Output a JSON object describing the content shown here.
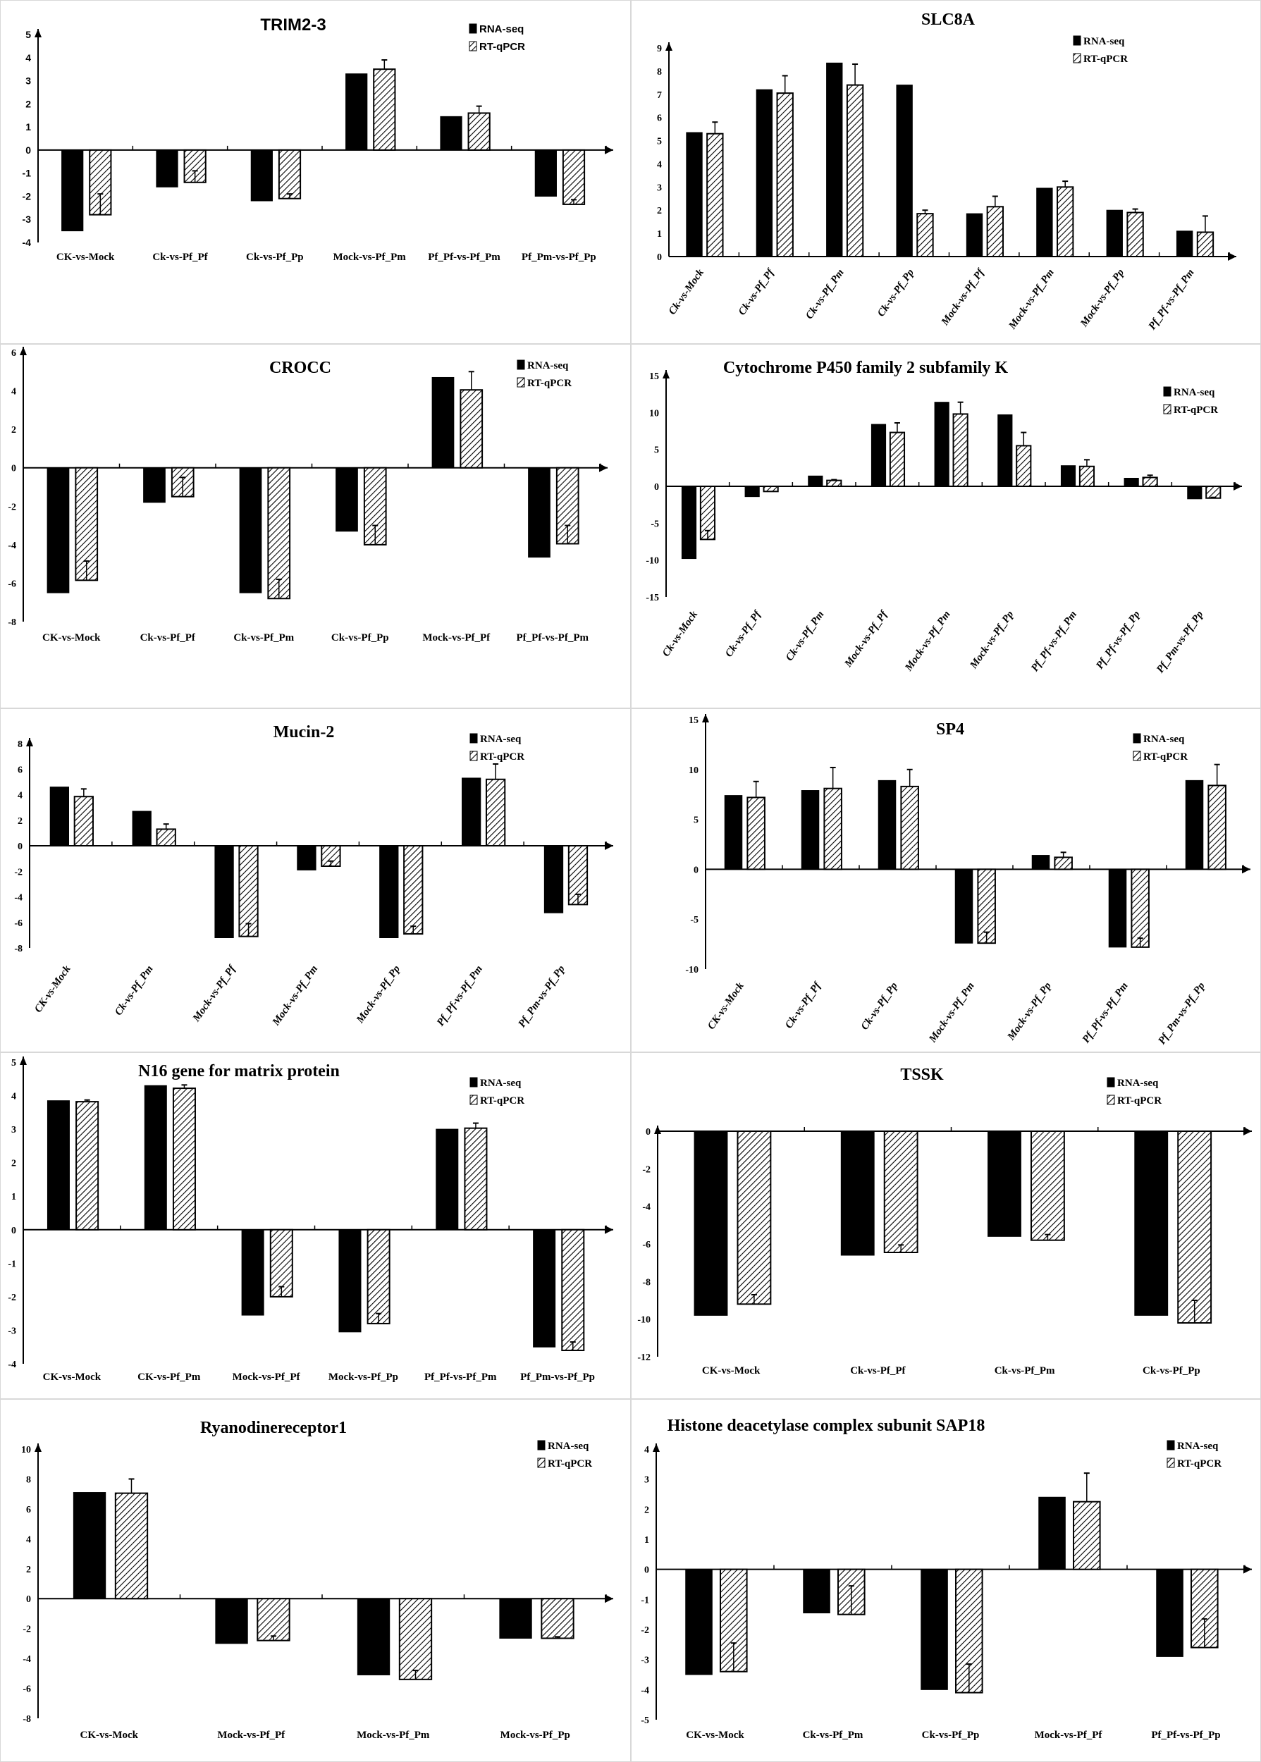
{
  "chart_data": [
    {
      "type": "bar",
      "title": "TRIM2-3",
      "categories": [
        "CK-vs-Mock",
        "Ck-vs-Pf_Pf",
        "Ck-vs-Pf_Pp",
        "Mock-vs-Pf_Pm",
        "Pf_Pf-vs-Pf_Pm",
        "Pf_Pm-vs-Pf_Pp"
      ],
      "series": [
        {
          "name": "RNA-seq",
          "values": [
            -3.5,
            -1.6,
            -2.2,
            3.3,
            1.45,
            -2.0
          ]
        },
        {
          "name": "RT-qPCR",
          "values": [
            -2.8,
            -1.4,
            -2.1,
            3.5,
            1.6,
            -2.35
          ],
          "errors": [
            0.9,
            0.5,
            0.2,
            0.4,
            0.3,
            0.2
          ]
        }
      ],
      "ylim": [
        -4,
        5
      ],
      "yticks": [
        "5",
        "4",
        "3",
        "2",
        "1",
        "0",
        "-1",
        "-2",
        "-3",
        "-4"
      ],
      "legend": "top-right",
      "xlabel": "",
      "ylabel": ""
    },
    {
      "type": "bar",
      "title": "SLC8A",
      "categories": [
        "Ck-vs-Mock",
        "Ck-vs-Pf_Pf",
        "Ck-vs-Pf_Pm",
        "Ck-vs-Pf_Pp",
        "Mock-vs-Pf_Pf",
        "Mock-vs-Pf_Pm",
        "Mock-vs-Pf_Pp",
        "Pf_Pf-vs-Pf_Pm"
      ],
      "series": [
        {
          "name": "RNA-seq",
          "values": [
            5.35,
            7.2,
            8.35,
            7.4,
            1.85,
            2.95,
            2.0,
            1.1
          ]
        },
        {
          "name": "RT-qPCR",
          "values": [
            5.3,
            7.05,
            7.4,
            1.85,
            2.15,
            3.0,
            1.9,
            1.05
          ],
          "errors": [
            0.5,
            0.75,
            0.9,
            0.15,
            0.45,
            0.25,
            0.15,
            0.7
          ]
        }
      ],
      "ylim": [
        0,
        9
      ],
      "yticks": [
        "9",
        "8",
        "7",
        "6",
        "5",
        "4",
        "3",
        "2",
        "1",
        "0"
      ],
      "legend": "top-right",
      "xlabel": "",
      "ylabel": ""
    },
    {
      "type": "bar",
      "title": "CROCC",
      "categories": [
        "CK-vs-Mock",
        "Ck-vs-Pf_Pf",
        "Ck-vs-Pf_Pm",
        "Ck-vs-Pf_Pp",
        "Mock-vs-Pf_Pf",
        "Pf_Pf-vs-Pf_Pm"
      ],
      "series": [
        {
          "name": "RNA-seq",
          "values": [
            -6.5,
            -1.8,
            -6.5,
            -3.3,
            4.7,
            -4.65
          ]
        },
        {
          "name": "RT-qPCR",
          "values": [
            -5.85,
            -1.5,
            -6.8,
            -4.0,
            4.05,
            -3.95
          ],
          "errors": [
            1.0,
            1.0,
            1.0,
            1.0,
            0.95,
            0.95
          ]
        }
      ],
      "ylim": [
        -8,
        6
      ],
      "yticks": [
        "6",
        "4",
        "2",
        "0",
        "-2",
        "-4",
        "-6",
        "-8"
      ],
      "legend": "top-right",
      "xlabel": "",
      "ylabel": ""
    },
    {
      "type": "bar",
      "title": "Cytochrome P450 family 2 subfamily K",
      "categories": [
        "Ck-vs-Mock",
        "Ck-vs-Pf_Pf",
        "Ck-vs-Pf_Pm",
        "Mock-vs-Pf_Pf",
        "Mock-vs-Pf_Pm",
        "Mock-vs-Pf_Pp",
        "Pf_Pf-vs-Pf_Pm",
        "Pf_Pf-vs-Pf_Pp",
        "Pf_Pm-vs-Pf_Pp"
      ],
      "series": [
        {
          "name": "RNA-seq",
          "values": [
            -9.8,
            -1.4,
            1.4,
            8.4,
            11.4,
            9.7,
            2.8,
            1.1,
            -1.7
          ]
        },
        {
          "name": "RT-qPCR",
          "values": [
            -7.2,
            -0.7,
            0.8,
            7.3,
            9.8,
            5.5,
            2.7,
            1.2,
            -1.6
          ],
          "errors": [
            1.2,
            0.0,
            0.1,
            1.3,
            1.6,
            1.8,
            0.9,
            0.3,
            0.1
          ]
        }
      ],
      "ylim": [
        -15,
        15
      ],
      "yticks": [
        "15",
        "10",
        "5",
        "0",
        "-5",
        "-10",
        "-15"
      ],
      "legend": "top-right",
      "xlabel": "",
      "ylabel": ""
    },
    {
      "type": "bar",
      "title": "Mucin-2",
      "categories": [
        "CK-vs-Mock",
        "Ck-vs-Pf_Pm",
        "Mock-vs-Pf_Pf",
        "Mock-vs-Pf_Pm",
        "Mock-vs-Pf_Pp",
        "Pf_Pf-vs-Pf_Pm",
        "Pf_Pm-vs-Pf_Pp"
      ],
      "series": [
        {
          "name": "RNA-seq",
          "values": [
            4.6,
            2.7,
            -7.2,
            -1.9,
            -7.2,
            5.3,
            -5.25
          ]
        },
        {
          "name": "RT-qPCR",
          "values": [
            3.85,
            1.3,
            -7.1,
            -1.6,
            -6.9,
            5.2,
            -4.6
          ],
          "errors": [
            0.6,
            0.4,
            1.0,
            0.4,
            0.6,
            1.2,
            0.8
          ]
        }
      ],
      "ylim": [
        -8,
        8
      ],
      "yticks": [
        "8",
        "6",
        "4",
        "2",
        "0",
        "-2",
        "-4",
        "-6",
        "-8"
      ],
      "legend": "top-right",
      "xlabel": "",
      "ylabel": ""
    },
    {
      "type": "bar",
      "title": "SP4",
      "categories": [
        "CK-vs-Mock",
        "Ck-vs-Pf_Pf",
        "Ck-vs-Pf_Pp",
        "Mock-vs-Pf_Pm",
        "Mock-vs-Pf_Pp",
        "Pf_Pf-vs-Pf_Pm",
        "Pf_Pm-vs-Pf_Pp"
      ],
      "series": [
        {
          "name": "RNA-seq",
          "values": [
            7.4,
            7.9,
            8.9,
            -7.4,
            1.4,
            -7.8,
            8.9
          ]
        },
        {
          "name": "RT-qPCR",
          "values": [
            7.2,
            8.1,
            8.3,
            -7.4,
            1.2,
            -7.8,
            8.4
          ],
          "errors": [
            1.6,
            2.1,
            1.7,
            1.1,
            0.5,
            0.9,
            2.1
          ]
        }
      ],
      "ylim": [
        -10,
        15
      ],
      "yticks": [
        "15",
        "10",
        "5",
        "0",
        "-5",
        "-10"
      ],
      "legend": "top-right",
      "xlabel": "",
      "ylabel": ""
    },
    {
      "type": "bar",
      "title": "N16 gene for matrix protein",
      "categories": [
        "CK-vs-Mock",
        "CK-vs-Pf_Pm",
        "Mock-vs-Pf_Pf",
        "Mock-vs-Pf_Pp",
        "Pf_Pf-vs-Pf_Pm",
        "Pf_Pm-vs-Pf_Pp"
      ],
      "series": [
        {
          "name": "RNA-seq",
          "values": [
            3.85,
            4.3,
            -2.55,
            -3.05,
            3.0,
            -3.5
          ]
        },
        {
          "name": "RT-qPCR",
          "values": [
            3.82,
            4.22,
            -2.0,
            -2.8,
            3.03,
            -3.6
          ],
          "errors": [
            0.05,
            0.1,
            0.3,
            0.3,
            0.15,
            0.25
          ]
        }
      ],
      "ylim": [
        -4,
        5
      ],
      "yticks": [
        "5",
        "4",
        "3",
        "2",
        "1",
        "0",
        "-1",
        "-2",
        "-3",
        "-4"
      ],
      "legend": "top-right",
      "xlabel": "",
      "ylabel": ""
    },
    {
      "type": "bar",
      "title": "TSSK",
      "categories": [
        "CK-vs-Mock",
        "Ck-vs-Pf_Pf",
        "Ck-vs-Pf_Pm",
        "Ck-vs-Pf_Pp"
      ],
      "series": [
        {
          "name": "RNA-seq",
          "values": [
            -9.8,
            -6.6,
            -5.6,
            -9.8
          ]
        },
        {
          "name": "RT-qPCR",
          "values": [
            -9.2,
            -6.45,
            -5.8,
            -10.2
          ],
          "errors": [
            0.5,
            0.4,
            0.3,
            1.2
          ]
        }
      ],
      "ylim": [
        -12,
        0
      ],
      "yticks": [
        "0",
        "-2",
        "-4",
        "-6",
        "-8",
        "-10",
        "-12"
      ],
      "legend": "top-right",
      "xlabel": "",
      "ylabel": ""
    },
    {
      "type": "bar",
      "title": "Ryanodinereceptor1",
      "categories": [
        "CK-vs-Mock",
        "Mock-vs-Pf_Pf",
        "Mock-vs-Pf_Pm",
        "Mock-vs-Pf_Pp"
      ],
      "series": [
        {
          "name": "RNA-seq",
          "values": [
            7.1,
            -3.0,
            -5.1,
            -2.65
          ]
        },
        {
          "name": "RT-qPCR",
          "values": [
            7.05,
            -2.8,
            -5.4,
            -2.65
          ],
          "errors": [
            0.95,
            0.3,
            0.6,
            0.1
          ]
        }
      ],
      "ylim": [
        -8,
        10
      ],
      "yticks": [
        "10",
        "8",
        "6",
        "4",
        "2",
        "0",
        "-2",
        "-4",
        "-6",
        "-8"
      ],
      "legend": "top-right",
      "xlabel": "",
      "ylabel": ""
    },
    {
      "type": "bar",
      "title": "Histone deacetylase complex subunit SAP18",
      "categories": [
        "CK-vs-Mock",
        "Ck-vs-Pf_Pm",
        "Ck-vs-Pf_Pp",
        "Mock-vs-Pf_Pf",
        "Pf_Pf-vs-Pf_Pp"
      ],
      "series": [
        {
          "name": "RNA-seq",
          "values": [
            -3.5,
            -1.45,
            -4.0,
            2.4,
            -2.9
          ]
        },
        {
          "name": "RT-qPCR",
          "values": [
            -3.4,
            -1.5,
            -4.1,
            2.25,
            -2.6
          ],
          "errors": [
            0.95,
            0.95,
            0.95,
            0.95,
            0.95
          ]
        }
      ],
      "ylim": [
        -5,
        4
      ],
      "yticks": [
        "4",
        "3",
        "2",
        "1",
        "0",
        "-1",
        "-2",
        "-3",
        "-4",
        "-5"
      ],
      "legend": "top-right",
      "xlabel": "",
      "ylabel": ""
    }
  ]
}
